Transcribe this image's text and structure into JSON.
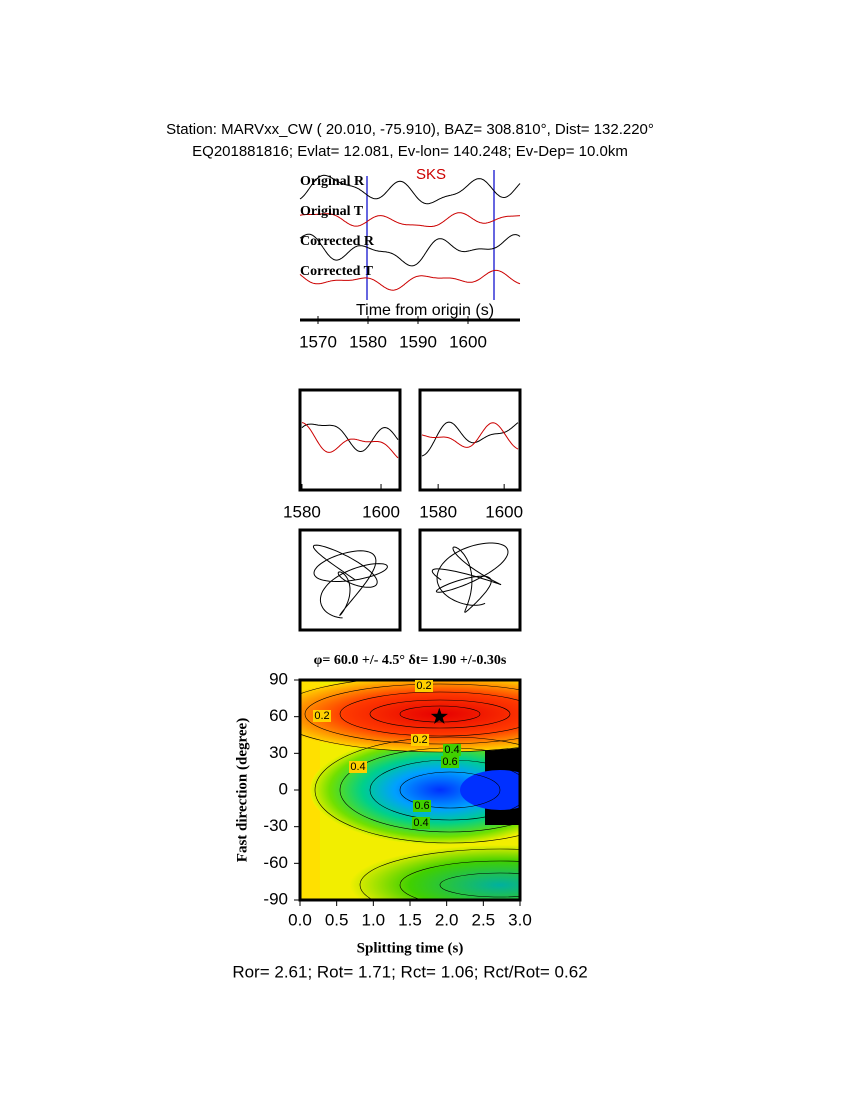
{
  "header": {
    "line1": "Station: MARVxx_CW (  20.010,  -75.910), BAZ=  308.810°, Dist=  132.220°",
    "line2": "EQ201881816; Evlat=  12.081, Ev-lon= 140.248; Ev-Dep= 10.0km"
  },
  "chart_data": [
    {
      "type": "waveform",
      "xlabel": "Time from origin (s)",
      "phase": "SKS",
      "series": [
        {
          "name": "Original R",
          "color": "#000000"
        },
        {
          "name": "Original T",
          "color": "#cc0000"
        },
        {
          "name": "Corrected R",
          "color": "#000000"
        },
        {
          "name": "Corrected T",
          "color": "#cc0000"
        }
      ],
      "xlim": [
        1566.4,
        1610.4
      ],
      "xticks": [
        1570,
        1580,
        1590,
        1600
      ]
    },
    {
      "type": "waveform-panel",
      "xlim": [
        1579.5,
        1604.8
      ],
      "xticks": [
        1580,
        1600
      ]
    },
    {
      "type": "waveform-panel",
      "xlim": [
        1574.5,
        1604.8
      ],
      "xticks": [
        1580,
        1600
      ]
    },
    {
      "type": "particle-motion"
    },
    {
      "type": "particle-motion"
    },
    {
      "type": "contour",
      "title": "φ= 60.0 +/- 4.5° δt= 1.90 +/-0.30s",
      "xlabel": "Splitting time (s)",
      "ylabel": "Fast direction (degree)",
      "xlim": [
        0,
        3
      ],
      "ylim": [
        -90,
        90
      ],
      "xticks": [
        {
          "value": 0,
          "label": "0.0"
        },
        {
          "value": 0.5,
          "label": "0.5"
        },
        {
          "value": 1,
          "label": "1.0"
        },
        {
          "value": 1.5,
          "label": "1.5"
        },
        {
          "value": 2,
          "label": "2.0"
        },
        {
          "value": 2.5,
          "label": "2.5"
        },
        {
          "value": 3,
          "label": "3.0"
        }
      ],
      "yticks": [
        90,
        60,
        30,
        0,
        -30,
        -60,
        -90
      ],
      "marker": {
        "x": 1.9,
        "y": 60
      },
      "contour_labels": [
        0.2,
        0.2,
        0.2,
        0.4,
        0.6,
        0.6,
        0.4,
        0.4
      ]
    }
  ],
  "footer": "Ror= 2.61; Rot= 1.71; Rct= 1.06; Rct/Rot= 0.62"
}
